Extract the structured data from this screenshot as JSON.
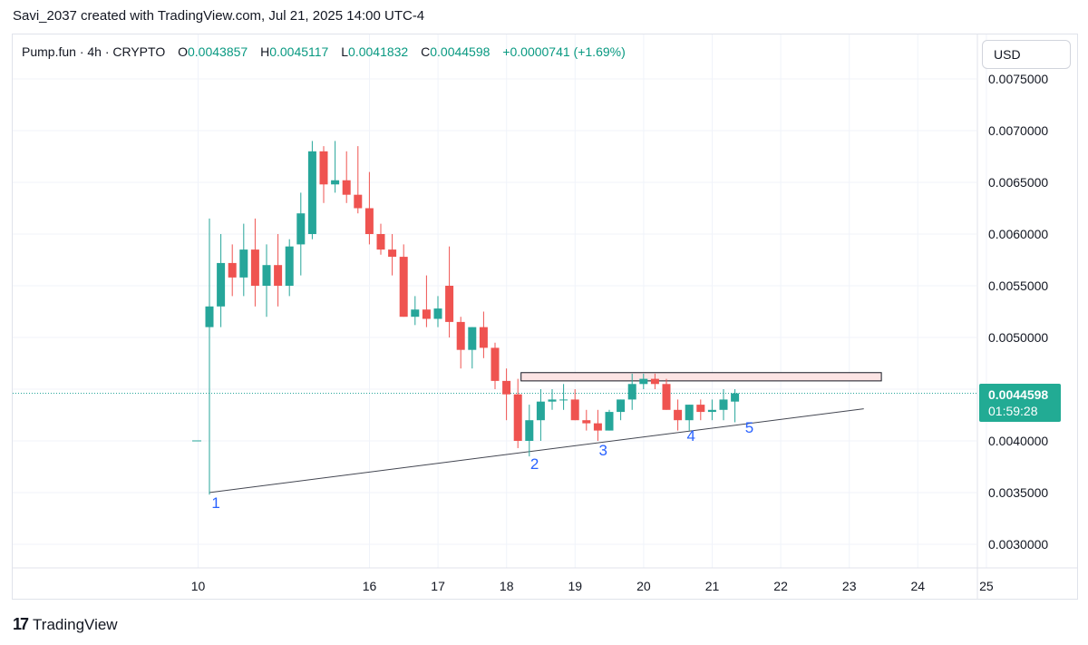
{
  "header": {
    "attribution": "Savi_2037 created with TradingView.com, Jul 21, 2025 14:00 UTC-4"
  },
  "legend": {
    "symbol": "Pump.fun · 4h · CRYPTO",
    "o_label": "O",
    "o_value": "0.0043857",
    "h_label": "H",
    "h_value": "0.0045117",
    "l_label": "L",
    "l_value": "0.0041832",
    "c_label": "C",
    "c_value": "0.0044598",
    "change": "+0.0000741 (+1.69%)"
  },
  "currency_button": "USD",
  "price_tag": {
    "price": "0.0044598",
    "countdown": "01:59:28"
  },
  "branding": {
    "logo_text": "TradingView"
  },
  "colors": {
    "up": "#26a69a",
    "down": "#ef5350",
    "grid": "#f0f3fa",
    "trendline": "#434651",
    "resistance_fill": "#fce4e4",
    "wave_label": "#2962ff"
  },
  "chart_data": {
    "type": "candlestick",
    "ylim": [
      0.00275,
      0.0077
    ],
    "y_ticks": [
      "0.0030000",
      "0.0035000",
      "0.0040000",
      "0.0045000",
      "0.0050000",
      "0.0055000",
      "0.0060000",
      "0.0065000",
      "0.0070000",
      "0.0075000"
    ],
    "y_tick_values": [
      0.003,
      0.0035,
      0.004,
      0.0045,
      0.005,
      0.0055,
      0.006,
      0.0065,
      0.007,
      0.0075
    ],
    "x_ticks": [
      "10",
      "16",
      "17",
      "18",
      "19",
      "20",
      "21",
      "22",
      "23",
      "24",
      "25"
    ],
    "x_tick_index": [
      0,
      15,
      21,
      27,
      33,
      39,
      45,
      51,
      57,
      63,
      69
    ],
    "candles": [
      {
        "o": 0.004,
        "h": 0.004,
        "l": 0.0035,
        "c": 0.004
      },
      {
        "o": 0.0051,
        "h": 0.00615,
        "l": 0.00348,
        "c": 0.0053
      },
      {
        "o": 0.0053,
        "h": 0.006,
        "l": 0.0051,
        "c": 0.00572
      },
      {
        "o": 0.00572,
        "h": 0.0059,
        "l": 0.0054,
        "c": 0.00558
      },
      {
        "o": 0.00558,
        "h": 0.0061,
        "l": 0.0054,
        "c": 0.00585
      },
      {
        "o": 0.00585,
        "h": 0.00615,
        "l": 0.0053,
        "c": 0.0055
      },
      {
        "o": 0.0055,
        "h": 0.0059,
        "l": 0.0052,
        "c": 0.0057
      },
      {
        "o": 0.0057,
        "h": 0.006,
        "l": 0.0053,
        "c": 0.0055
      },
      {
        "o": 0.0055,
        "h": 0.00595,
        "l": 0.0054,
        "c": 0.00588
      },
      {
        "o": 0.0059,
        "h": 0.0064,
        "l": 0.0056,
        "c": 0.0062
      },
      {
        "o": 0.006,
        "h": 0.0069,
        "l": 0.00595,
        "c": 0.0068
      },
      {
        "o": 0.0068,
        "h": 0.00685,
        "l": 0.0063,
        "c": 0.00648
      },
      {
        "o": 0.00648,
        "h": 0.0069,
        "l": 0.0064,
        "c": 0.00652
      },
      {
        "o": 0.00652,
        "h": 0.0068,
        "l": 0.0063,
        "c": 0.00638
      },
      {
        "o": 0.00638,
        "h": 0.00685,
        "l": 0.0062,
        "c": 0.00625
      },
      {
        "o": 0.00625,
        "h": 0.0066,
        "l": 0.0059,
        "c": 0.006
      },
      {
        "o": 0.006,
        "h": 0.0061,
        "l": 0.0058,
        "c": 0.00585
      },
      {
        "o": 0.00585,
        "h": 0.006,
        "l": 0.0056,
        "c": 0.00578
      },
      {
        "o": 0.00578,
        "h": 0.0059,
        "l": 0.0052,
        "c": 0.0052
      },
      {
        "o": 0.0052,
        "h": 0.0054,
        "l": 0.00512,
        "c": 0.00527
      },
      {
        "o": 0.00527,
        "h": 0.0056,
        "l": 0.0051,
        "c": 0.00518
      },
      {
        "o": 0.00518,
        "h": 0.0054,
        "l": 0.0051,
        "c": 0.00528
      },
      {
        "o": 0.0055,
        "h": 0.00588,
        "l": 0.005,
        "c": 0.00515
      },
      {
        "o": 0.00515,
        "h": 0.0052,
        "l": 0.0047,
        "c": 0.00488
      },
      {
        "o": 0.00488,
        "h": 0.0051,
        "l": 0.0047,
        "c": 0.0051
      },
      {
        "o": 0.0051,
        "h": 0.00525,
        "l": 0.0048,
        "c": 0.0049
      },
      {
        "o": 0.0049,
        "h": 0.00495,
        "l": 0.0045,
        "c": 0.00458
      },
      {
        "o": 0.00458,
        "h": 0.0047,
        "l": 0.0042,
        "c": 0.00445
      },
      {
        "o": 0.00445,
        "h": 0.0046,
        "l": 0.00393,
        "c": 0.004
      },
      {
        "o": 0.004,
        "h": 0.00435,
        "l": 0.00385,
        "c": 0.0042
      },
      {
        "o": 0.0042,
        "h": 0.0045,
        "l": 0.004,
        "c": 0.00438
      },
      {
        "o": 0.00438,
        "h": 0.0045,
        "l": 0.0043,
        "c": 0.0044
      },
      {
        "o": 0.0044,
        "h": 0.00455,
        "l": 0.0043,
        "c": 0.0044
      },
      {
        "o": 0.0044,
        "h": 0.0045,
        "l": 0.0042,
        "c": 0.0042
      },
      {
        "o": 0.0042,
        "h": 0.0043,
        "l": 0.0041,
        "c": 0.00417
      },
      {
        "o": 0.00417,
        "h": 0.0043,
        "l": 0.004,
        "c": 0.0041
      },
      {
        "o": 0.0041,
        "h": 0.0043,
        "l": 0.0041,
        "c": 0.00428
      },
      {
        "o": 0.00428,
        "h": 0.0044,
        "l": 0.0042,
        "c": 0.0044
      },
      {
        "o": 0.0044,
        "h": 0.00465,
        "l": 0.0043,
        "c": 0.00455
      },
      {
        "o": 0.00455,
        "h": 0.00465,
        "l": 0.0045,
        "c": 0.0046
      },
      {
        "o": 0.0046,
        "h": 0.00465,
        "l": 0.0045,
        "c": 0.00455
      },
      {
        "o": 0.00455,
        "h": 0.0046,
        "l": 0.0043,
        "c": 0.0043
      },
      {
        "o": 0.0043,
        "h": 0.0044,
        "l": 0.0041,
        "c": 0.0042
      },
      {
        "o": 0.0042,
        "h": 0.00435,
        "l": 0.0041,
        "c": 0.00435
      },
      {
        "o": 0.00435,
        "h": 0.0044,
        "l": 0.0042,
        "c": 0.00428
      },
      {
        "o": 0.00428,
        "h": 0.0044,
        "l": 0.0042,
        "c": 0.0043
      },
      {
        "o": 0.0043,
        "h": 0.0045,
        "l": 0.0042,
        "c": 0.0044
      },
      {
        "o": 0.00438,
        "h": 0.0045,
        "l": 0.00418,
        "c": 0.00446
      }
    ],
    "resistance_zone": {
      "from_index": 27,
      "to_index": 56,
      "low": 0.00458,
      "high": 0.00466
    },
    "trendline": {
      "from_index": 0,
      "from_price": 0.0035,
      "to_index": 57,
      "to_price": 0.00431
    },
    "last_price_line": 0.00446,
    "wave_labels": [
      {
        "text": "1",
        "index": 0.6,
        "price": 0.00335
      },
      {
        "text": "2",
        "index": 28.5,
        "price": 0.00373
      },
      {
        "text": "3",
        "index": 34.5,
        "price": 0.00386
      },
      {
        "text": "4",
        "index": 42.2,
        "price": 0.004
      },
      {
        "text": "5",
        "index": 47.3,
        "price": 0.00408
      }
    ]
  }
}
